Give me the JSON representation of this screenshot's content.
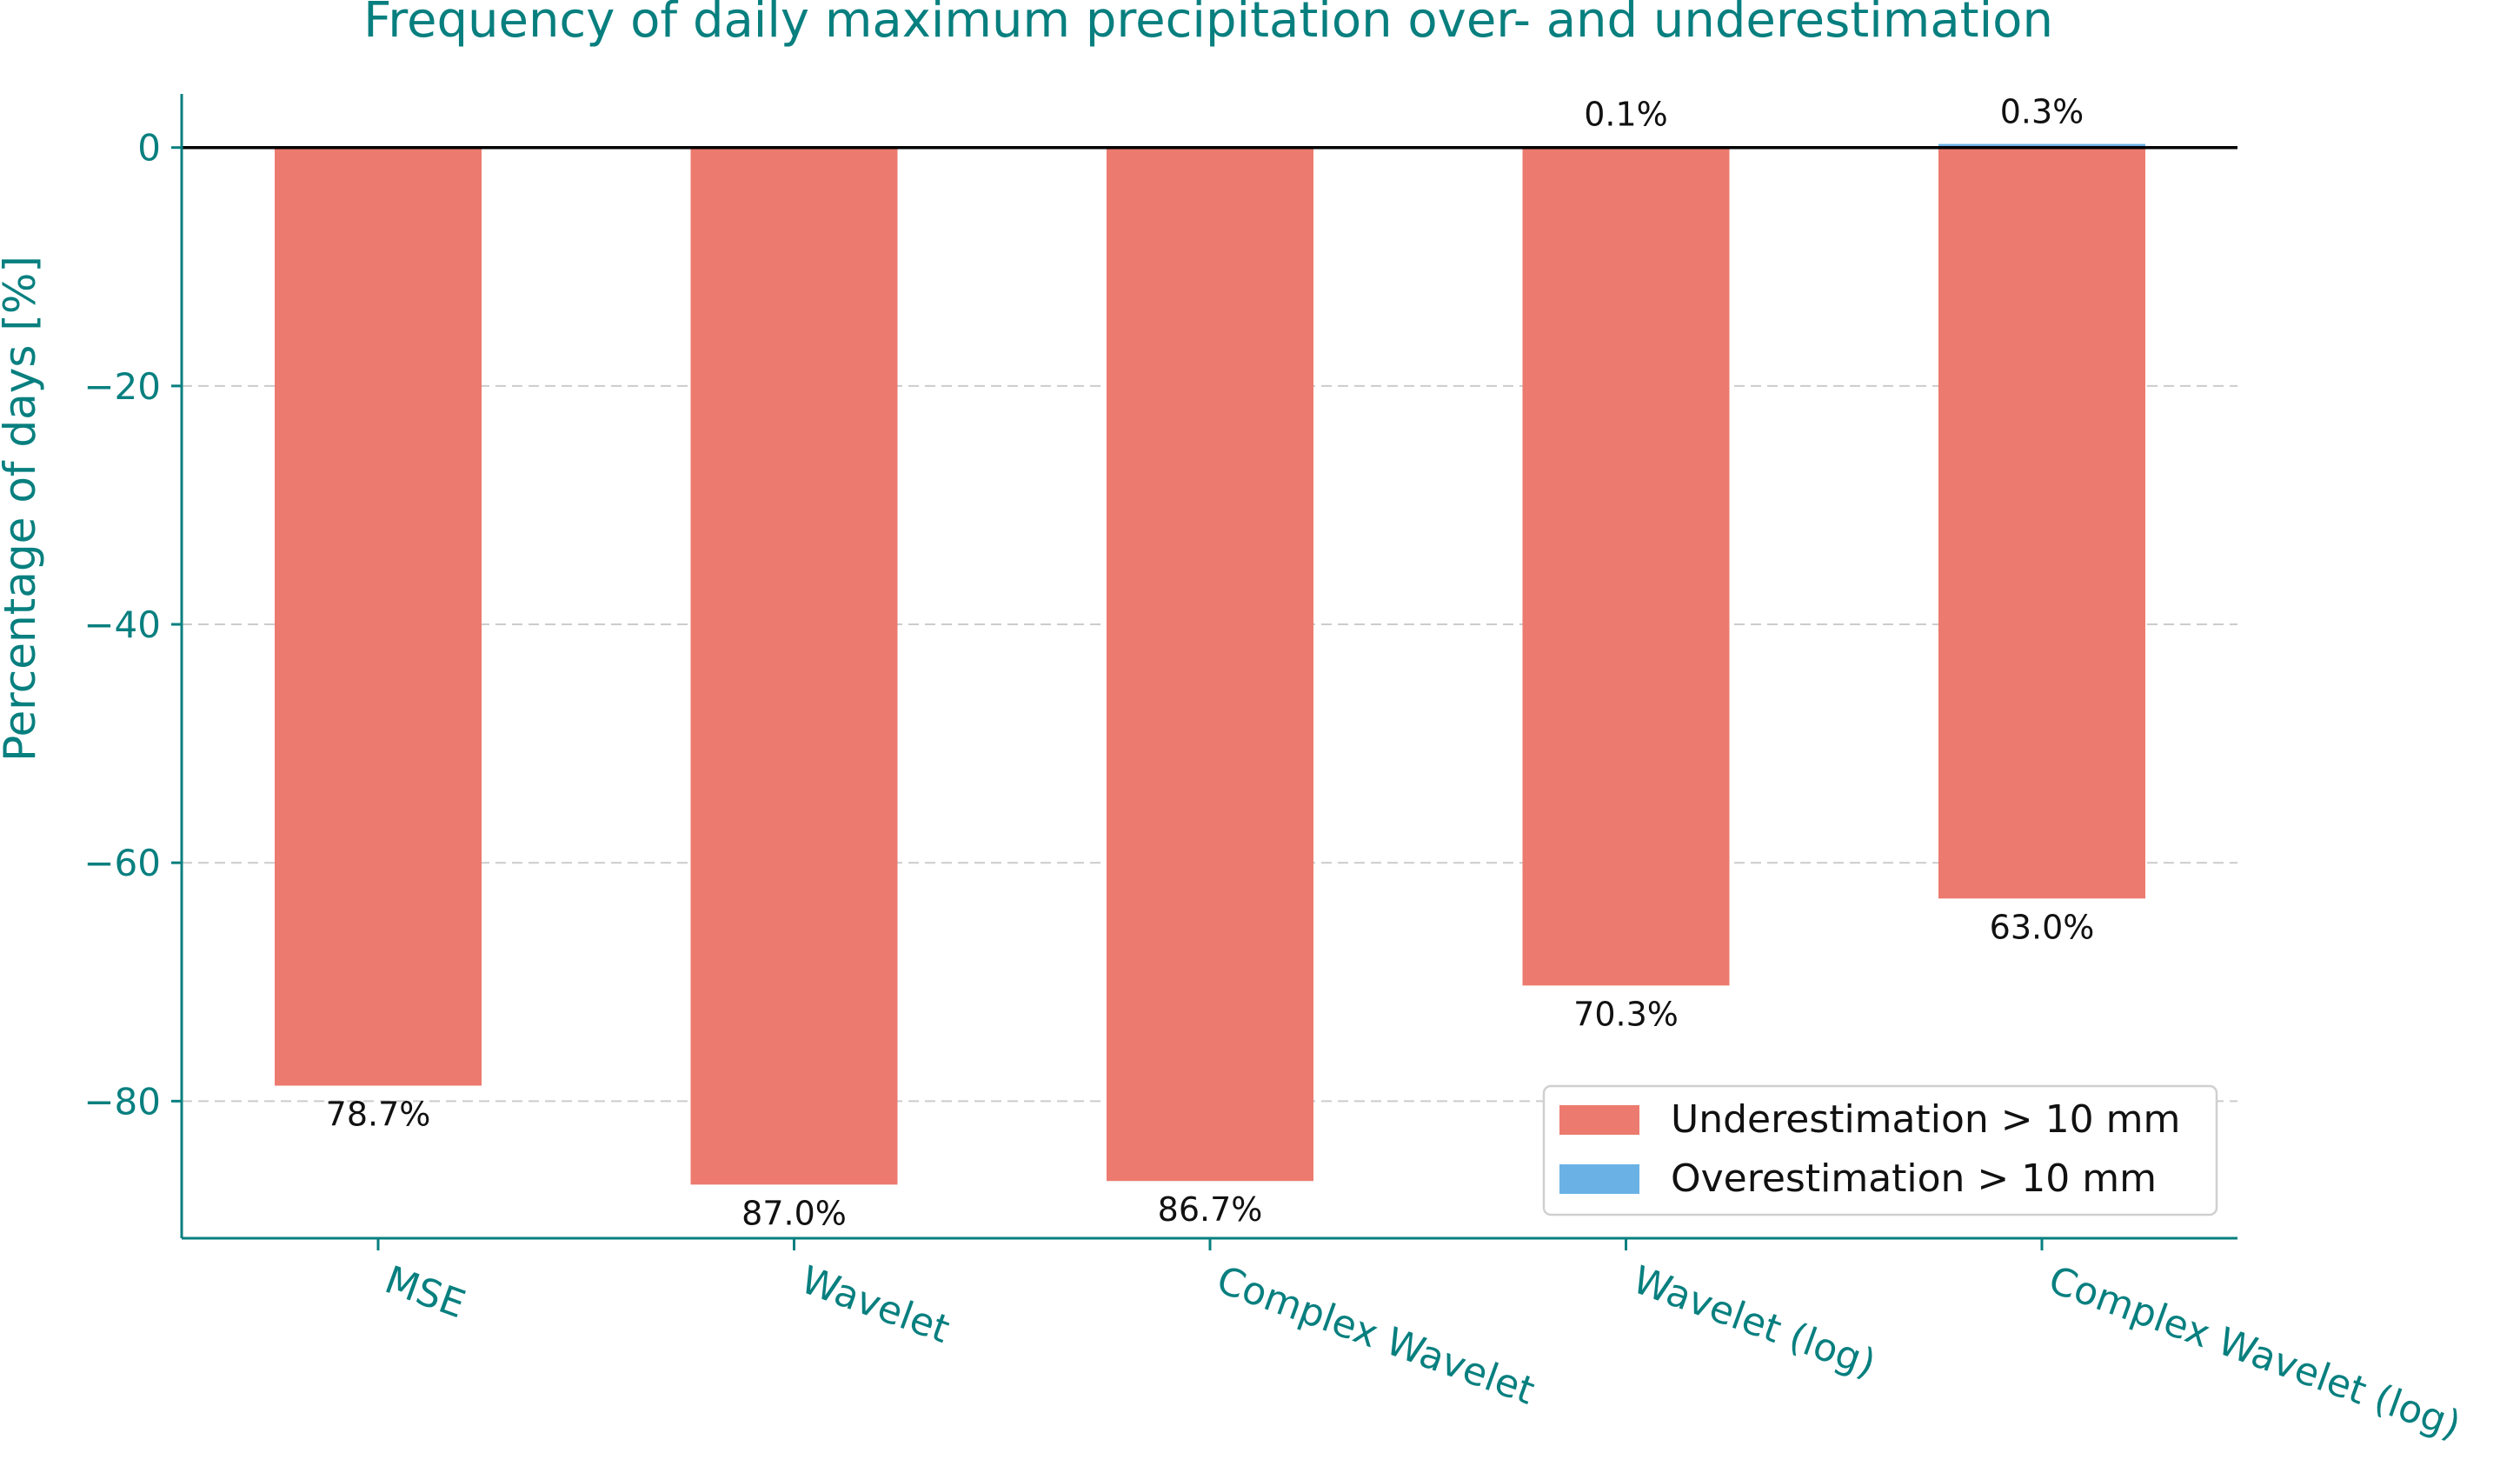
{
  "chart_data": {
    "type": "bar",
    "title": "Frequency of daily maximum precipitation over- and underestimation",
    "xlabel": "",
    "ylabel": "Percentage of days [%]",
    "categories": [
      "MSE",
      "Wavelet",
      "Complex Wavelet",
      "Wavelet (log)",
      "Complex Wavelet (log)"
    ],
    "series": [
      {
        "name": "Underestimation > 10 mm",
        "color": "#ec7a6e",
        "values": [
          -78.7,
          -87.0,
          -86.7,
          -70.3,
          -63.0
        ],
        "labels": [
          "78.7%",
          "87.0%",
          "86.7%",
          "70.3%",
          "63.0%"
        ]
      },
      {
        "name": "Overestimation > 10 mm",
        "color": "#6ab2e6",
        "values": [
          0.0,
          0.0,
          0.0,
          0.1,
          0.3
        ],
        "labels": [
          "",
          "",
          "",
          "0.1%",
          "0.3%"
        ]
      }
    ],
    "ylim": [
      -91.5,
      4.5
    ],
    "yticks": [
      0,
      -20,
      -40,
      -60,
      -80
    ],
    "ytick_labels": [
      "0",
      "−20",
      "−40",
      "−60",
      "−80"
    ],
    "grid": "y dashed",
    "legend_position": "lower-right",
    "colors": {
      "text_accent": "#087f7f",
      "axis": "#087f7f",
      "zero_line": "#000000",
      "grid": "#cccccc"
    }
  }
}
